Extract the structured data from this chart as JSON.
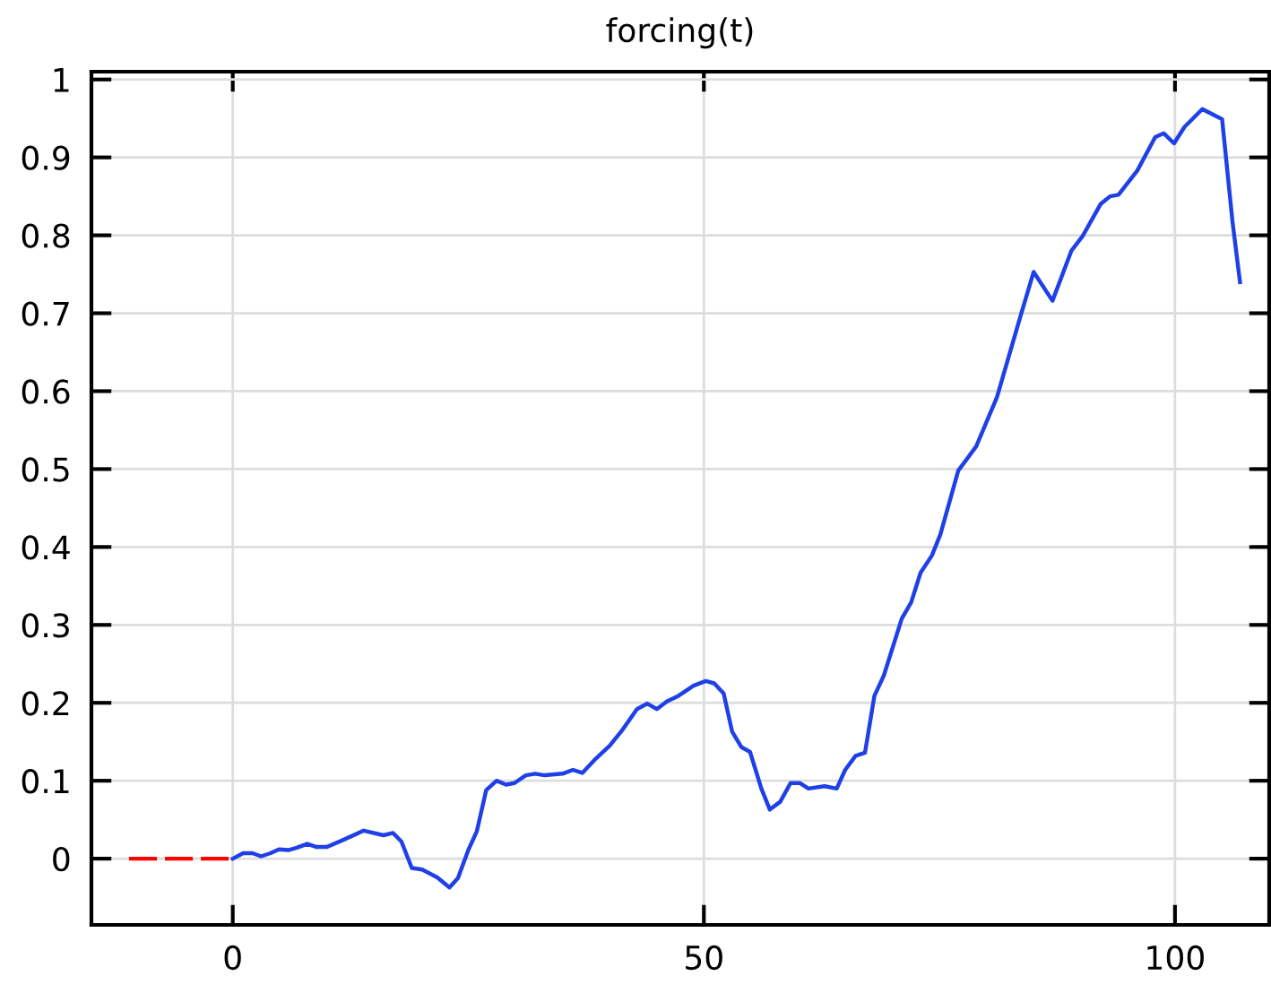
{
  "chart_data": {
    "type": "line",
    "title": "forcing(t)",
    "xlim": [
      -15,
      110
    ],
    "xticks": [
      0,
      50,
      100
    ],
    "ylim": [
      -0.085,
      1.01
    ],
    "yticks": [
      0,
      0.1,
      0.2,
      0.3,
      0.4,
      0.5,
      0.6,
      0.7,
      0.8,
      0.9,
      1
    ],
    "grid": true,
    "marker": "none",
    "series": [
      {
        "color": "#ff0000",
        "line_style": "dashed",
        "x": [
          -11,
          0
        ],
        "values": [
          0,
          0
        ]
      },
      {
        "color": "#1f40e6",
        "line_style": "solid",
        "x": [
          0,
          1.1,
          2.1,
          3.0,
          4.0,
          4.9,
          5.9,
          6.8,
          7.9,
          8.9,
          10.0,
          11.9,
          13.9,
          16.0,
          17.0,
          17.9,
          19.0,
          20.1,
          21.7,
          23.0,
          23.9,
          25.0,
          25.9,
          26.9,
          28.0,
          29.0,
          29.9,
          31.1,
          32.1,
          33.1,
          35.0,
          36.1,
          37.1,
          38.5,
          40.0,
          41.4,
          42.9,
          44.0,
          45.0,
          46.1,
          47.3,
          48.9,
          50.2,
          51.1,
          52.1,
          53.0,
          54.0,
          54.9,
          56.1,
          57.0,
          58.1,
          59.2,
          60.2,
          61.1,
          62.8,
          64.1,
          65.0,
          66.1,
          67.1,
          68.1,
          69.1,
          71.0,
          72.0,
          73.0,
          74.2,
          75.1,
          77.0,
          78.9,
          81.1,
          83.6,
          85.0,
          87.0,
          89.0,
          90.2,
          92.1,
          93.1,
          94.0,
          96.0,
          97.9,
          98.8,
          99.9,
          101.0,
          102.9,
          105.0,
          106.1,
          106.9
        ],
        "values": [
          0,
          0.007,
          0.007,
          0.003,
          0.007,
          0.012,
          0.011,
          0.014,
          0.019,
          0.015,
          0.015,
          0.025,
          0.036,
          0.03,
          0.033,
          0.022,
          -0.012,
          -0.014,
          -0.024,
          -0.037,
          -0.025,
          0.011,
          0.035,
          0.088,
          0.1,
          0.095,
          0.097,
          0.107,
          0.109,
          0.107,
          0.109,
          0.114,
          0.11,
          0.128,
          0.145,
          0.166,
          0.192,
          0.199,
          0.192,
          0.202,
          0.209,
          0.222,
          0.228,
          0.225,
          0.212,
          0.163,
          0.143,
          0.137,
          0.09,
          0.063,
          0.073,
          0.097,
          0.097,
          0.09,
          0.093,
          0.09,
          0.114,
          0.132,
          0.136,
          0.209,
          0.235,
          0.308,
          0.329,
          0.367,
          0.389,
          0.416,
          0.498,
          0.529,
          0.592,
          0.696,
          0.753,
          0.716,
          0.78,
          0.799,
          0.84,
          0.85,
          0.852,
          0.883,
          0.926,
          0.931,
          0.918,
          0.939,
          0.962,
          0.949,
          0.818,
          0.74
        ]
      }
    ]
  }
}
